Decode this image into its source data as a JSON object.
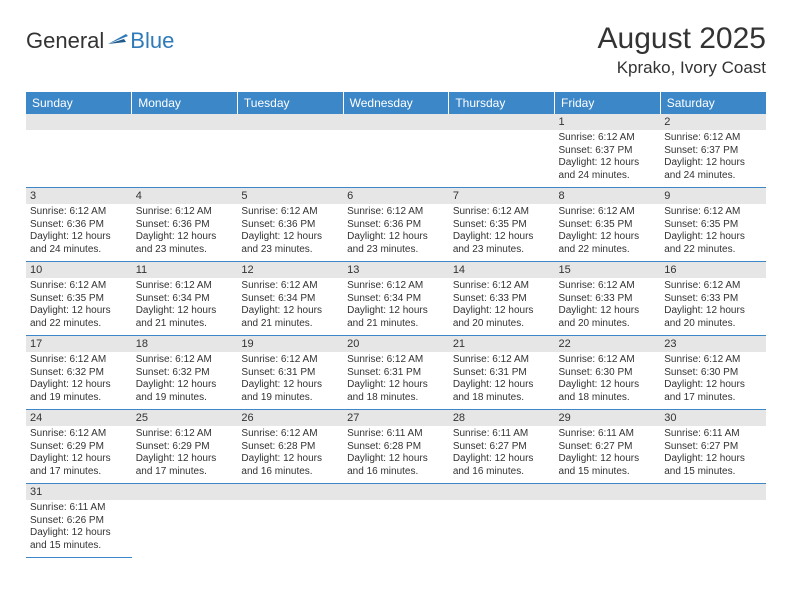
{
  "logo": {
    "text1": "General",
    "text2": "Blue"
  },
  "title": "August 2025",
  "location": "Kprako, Ivory Coast",
  "colors": {
    "header_bg": "#3b87c8",
    "header_text": "#ffffff",
    "daynum_bg": "#e6e6e6",
    "row_border": "#3b87c8",
    "text": "#333333",
    "logo_blue": "#2f7ab8"
  },
  "dayHeaders": [
    "Sunday",
    "Monday",
    "Tuesday",
    "Wednesday",
    "Thursday",
    "Friday",
    "Saturday"
  ],
  "weeks": [
    [
      null,
      null,
      null,
      null,
      null,
      {
        "n": "1",
        "sunrise": "Sunrise: 6:12 AM",
        "sunset": "Sunset: 6:37 PM",
        "day1": "Daylight: 12 hours",
        "day2": "and 24 minutes."
      },
      {
        "n": "2",
        "sunrise": "Sunrise: 6:12 AM",
        "sunset": "Sunset: 6:37 PM",
        "day1": "Daylight: 12 hours",
        "day2": "and 24 minutes."
      }
    ],
    [
      {
        "n": "3",
        "sunrise": "Sunrise: 6:12 AM",
        "sunset": "Sunset: 6:36 PM",
        "day1": "Daylight: 12 hours",
        "day2": "and 24 minutes."
      },
      {
        "n": "4",
        "sunrise": "Sunrise: 6:12 AM",
        "sunset": "Sunset: 6:36 PM",
        "day1": "Daylight: 12 hours",
        "day2": "and 23 minutes."
      },
      {
        "n": "5",
        "sunrise": "Sunrise: 6:12 AM",
        "sunset": "Sunset: 6:36 PM",
        "day1": "Daylight: 12 hours",
        "day2": "and 23 minutes."
      },
      {
        "n": "6",
        "sunrise": "Sunrise: 6:12 AM",
        "sunset": "Sunset: 6:36 PM",
        "day1": "Daylight: 12 hours",
        "day2": "and 23 minutes."
      },
      {
        "n": "7",
        "sunrise": "Sunrise: 6:12 AM",
        "sunset": "Sunset: 6:35 PM",
        "day1": "Daylight: 12 hours",
        "day2": "and 23 minutes."
      },
      {
        "n": "8",
        "sunrise": "Sunrise: 6:12 AM",
        "sunset": "Sunset: 6:35 PM",
        "day1": "Daylight: 12 hours",
        "day2": "and 22 minutes."
      },
      {
        "n": "9",
        "sunrise": "Sunrise: 6:12 AM",
        "sunset": "Sunset: 6:35 PM",
        "day1": "Daylight: 12 hours",
        "day2": "and 22 minutes."
      }
    ],
    [
      {
        "n": "10",
        "sunrise": "Sunrise: 6:12 AM",
        "sunset": "Sunset: 6:35 PM",
        "day1": "Daylight: 12 hours",
        "day2": "and 22 minutes."
      },
      {
        "n": "11",
        "sunrise": "Sunrise: 6:12 AM",
        "sunset": "Sunset: 6:34 PM",
        "day1": "Daylight: 12 hours",
        "day2": "and 21 minutes."
      },
      {
        "n": "12",
        "sunrise": "Sunrise: 6:12 AM",
        "sunset": "Sunset: 6:34 PM",
        "day1": "Daylight: 12 hours",
        "day2": "and 21 minutes."
      },
      {
        "n": "13",
        "sunrise": "Sunrise: 6:12 AM",
        "sunset": "Sunset: 6:34 PM",
        "day1": "Daylight: 12 hours",
        "day2": "and 21 minutes."
      },
      {
        "n": "14",
        "sunrise": "Sunrise: 6:12 AM",
        "sunset": "Sunset: 6:33 PM",
        "day1": "Daylight: 12 hours",
        "day2": "and 20 minutes."
      },
      {
        "n": "15",
        "sunrise": "Sunrise: 6:12 AM",
        "sunset": "Sunset: 6:33 PM",
        "day1": "Daylight: 12 hours",
        "day2": "and 20 minutes."
      },
      {
        "n": "16",
        "sunrise": "Sunrise: 6:12 AM",
        "sunset": "Sunset: 6:33 PM",
        "day1": "Daylight: 12 hours",
        "day2": "and 20 minutes."
      }
    ],
    [
      {
        "n": "17",
        "sunrise": "Sunrise: 6:12 AM",
        "sunset": "Sunset: 6:32 PM",
        "day1": "Daylight: 12 hours",
        "day2": "and 19 minutes."
      },
      {
        "n": "18",
        "sunrise": "Sunrise: 6:12 AM",
        "sunset": "Sunset: 6:32 PM",
        "day1": "Daylight: 12 hours",
        "day2": "and 19 minutes."
      },
      {
        "n": "19",
        "sunrise": "Sunrise: 6:12 AM",
        "sunset": "Sunset: 6:31 PM",
        "day1": "Daylight: 12 hours",
        "day2": "and 19 minutes."
      },
      {
        "n": "20",
        "sunrise": "Sunrise: 6:12 AM",
        "sunset": "Sunset: 6:31 PM",
        "day1": "Daylight: 12 hours",
        "day2": "and 18 minutes."
      },
      {
        "n": "21",
        "sunrise": "Sunrise: 6:12 AM",
        "sunset": "Sunset: 6:31 PM",
        "day1": "Daylight: 12 hours",
        "day2": "and 18 minutes."
      },
      {
        "n": "22",
        "sunrise": "Sunrise: 6:12 AM",
        "sunset": "Sunset: 6:30 PM",
        "day1": "Daylight: 12 hours",
        "day2": "and 18 minutes."
      },
      {
        "n": "23",
        "sunrise": "Sunrise: 6:12 AM",
        "sunset": "Sunset: 6:30 PM",
        "day1": "Daylight: 12 hours",
        "day2": "and 17 minutes."
      }
    ],
    [
      {
        "n": "24",
        "sunrise": "Sunrise: 6:12 AM",
        "sunset": "Sunset: 6:29 PM",
        "day1": "Daylight: 12 hours",
        "day2": "and 17 minutes."
      },
      {
        "n": "25",
        "sunrise": "Sunrise: 6:12 AM",
        "sunset": "Sunset: 6:29 PM",
        "day1": "Daylight: 12 hours",
        "day2": "and 17 minutes."
      },
      {
        "n": "26",
        "sunrise": "Sunrise: 6:12 AM",
        "sunset": "Sunset: 6:28 PM",
        "day1": "Daylight: 12 hours",
        "day2": "and 16 minutes."
      },
      {
        "n": "27",
        "sunrise": "Sunrise: 6:11 AM",
        "sunset": "Sunset: 6:28 PM",
        "day1": "Daylight: 12 hours",
        "day2": "and 16 minutes."
      },
      {
        "n": "28",
        "sunrise": "Sunrise: 6:11 AM",
        "sunset": "Sunset: 6:27 PM",
        "day1": "Daylight: 12 hours",
        "day2": "and 16 minutes."
      },
      {
        "n": "29",
        "sunrise": "Sunrise: 6:11 AM",
        "sunset": "Sunset: 6:27 PM",
        "day1": "Daylight: 12 hours",
        "day2": "and 15 minutes."
      },
      {
        "n": "30",
        "sunrise": "Sunrise: 6:11 AM",
        "sunset": "Sunset: 6:27 PM",
        "day1": "Daylight: 12 hours",
        "day2": "and 15 minutes."
      }
    ],
    [
      {
        "n": "31",
        "sunrise": "Sunrise: 6:11 AM",
        "sunset": "Sunset: 6:26 PM",
        "day1": "Daylight: 12 hours",
        "day2": "and 15 minutes."
      },
      null,
      null,
      null,
      null,
      null,
      null
    ]
  ]
}
